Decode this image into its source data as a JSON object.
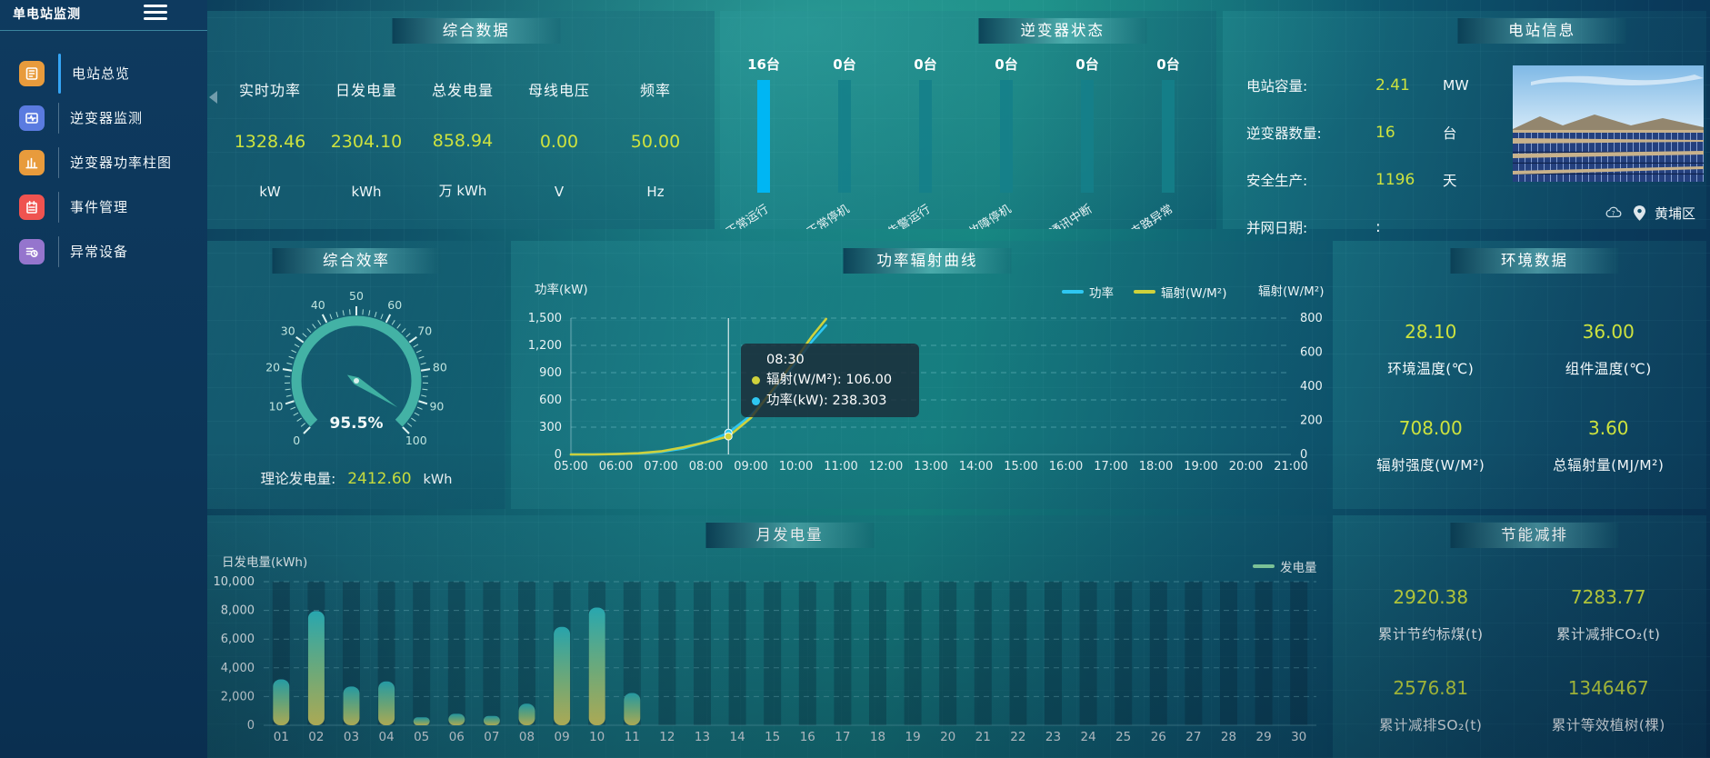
{
  "app": {
    "location_label": "黄埔区"
  },
  "sidebar": {
    "title": "单电站监测",
    "items": [
      {
        "label": "电站总览",
        "icon": "overview-icon",
        "color": "#e89b3c",
        "active": true
      },
      {
        "label": "逆变器监测",
        "icon": "inverter-monitor-icon",
        "color": "#5a7be0",
        "active": false
      },
      {
        "label": "逆变器功率柱图",
        "icon": "power-bars-icon",
        "color": "#e89b3c",
        "active": false
      },
      {
        "label": "事件管理",
        "icon": "event-icon",
        "color": "#ef5350",
        "active": false
      },
      {
        "label": "异常设备",
        "icon": "abnormal-device-icon",
        "color": "#9575cd",
        "active": false
      }
    ]
  },
  "summary": {
    "title": "综合数据",
    "metrics": [
      {
        "label": "实时功率",
        "value": "1328.46",
        "unit": "kW"
      },
      {
        "label": "日发电量",
        "value": "2304.10",
        "unit": "kWh"
      },
      {
        "label": "总发电量",
        "value": "858.94",
        "unit": "万 kWh"
      },
      {
        "label": "母线电压",
        "value": "0.00",
        "unit": "V"
      },
      {
        "label": "频率",
        "value": "50.00",
        "unit": "Hz"
      }
    ]
  },
  "inverter_status": {
    "title": "逆变器状态"
  },
  "station_info": {
    "title": "电站信息",
    "rows": [
      {
        "label": "电站容量:",
        "value": "2.41",
        "unit": "MW"
      },
      {
        "label": "逆变器数量:",
        "value": "16",
        "unit": "台"
      },
      {
        "label": "安全生产:",
        "value": "1196",
        "unit": "天"
      },
      {
        "label": "并网日期:",
        "value": ":",
        "unit": ""
      }
    ],
    "location": "黄埔区"
  },
  "efficiency": {
    "title": "综合效率",
    "footer_label": "理论发电量:",
    "footer_value": "2412.60",
    "footer_unit": "kWh"
  },
  "power_curve": {
    "title": "功率辐射曲线"
  },
  "environment": {
    "title": "环境数据",
    "metrics": [
      {
        "value": "28.10",
        "label": "环境温度(℃)"
      },
      {
        "value": "36.00",
        "label": "组件温度(℃)"
      },
      {
        "value": "708.00",
        "label": "辐射强度(W/M²)"
      },
      {
        "value": "3.60",
        "label": "总辐射量(MJ/M²)"
      }
    ]
  },
  "monthly": {
    "title": "月发电量"
  },
  "saving": {
    "title": "节能减排",
    "metrics": [
      {
        "value": "2920.38",
        "label": "累计节约标煤(t)"
      },
      {
        "value": "7283.77",
        "label": "累计减排CO₂(t)"
      },
      {
        "value": "2576.81",
        "label": "累计减排SO₂(t)"
      },
      {
        "value": "1346467",
        "label": "累计等效植树(棵)"
      }
    ]
  },
  "chart_data": [
    {
      "id": "inverter_status",
      "type": "bar",
      "categories": [
        "正常运行",
        "正常停机",
        "告警运行",
        "故障停机",
        "通讯中断",
        "支路异常"
      ],
      "values": [
        16,
        0,
        0,
        0,
        0,
        0
      ],
      "value_labels": [
        "16台",
        "0台",
        "0台",
        "0台",
        "0台",
        "0台"
      ],
      "active_color": "#00b6f3",
      "idle_color": "#15808a"
    },
    {
      "id": "efficiency_gauge",
      "type": "gauge",
      "min": 0,
      "max": 100,
      "value": 95.5,
      "display": "95.5%",
      "tick_labels": [
        "0",
        "10",
        "20",
        "30",
        "40",
        "50",
        "60",
        "70",
        "80",
        "90",
        "100"
      ],
      "color": "#43b2a5"
    },
    {
      "id": "power_radiation",
      "type": "line",
      "title": "功率辐射曲线",
      "ylabel_left": "功率(kW)",
      "ylabel_right": "辐射(W/M²)",
      "x_range": [
        5,
        21
      ],
      "x_ticks": [
        "05:00",
        "06:00",
        "07:00",
        "08:00",
        "09:00",
        "10:00",
        "11:00",
        "12:00",
        "13:00",
        "14:00",
        "15:00",
        "16:00",
        "17:00",
        "18:00",
        "19:00",
        "20:00",
        "21:00"
      ],
      "left_ticks": [
        "1,500",
        "1,200",
        "900",
        "600",
        "300",
        "0"
      ],
      "left_max": 1500,
      "right_ticks": [
        "800",
        "600",
        "400",
        "200",
        "0"
      ],
      "right_max": 800,
      "grid": true,
      "legend_position": "top-right",
      "series": [
        {
          "name": "功率",
          "color": "#2ec7f2",
          "axis": "left",
          "points": [
            [
              5,
              0
            ],
            [
              5.5,
              0
            ],
            [
              6,
              4
            ],
            [
              6.5,
              10
            ],
            [
              7,
              28
            ],
            [
              7.5,
              65
            ],
            [
              8,
              135
            ],
            [
              8.5,
              238.303
            ],
            [
              9,
              430
            ],
            [
              9.5,
              700
            ],
            [
              10,
              1010
            ],
            [
              10.35,
              1240
            ],
            [
              10.67,
              1420
            ]
          ]
        },
        {
          "name": "辐射(W/M²)",
          "color": "#cfd23c",
          "axis": "right",
          "points": [
            [
              5,
              0
            ],
            [
              5.5,
              0
            ],
            [
              6,
              2
            ],
            [
              6.5,
              7
            ],
            [
              7,
              18
            ],
            [
              7.5,
              42
            ],
            [
              8,
              72
            ],
            [
              8.5,
              106
            ],
            [
              9,
              215
            ],
            [
              9.5,
              385
            ],
            [
              10,
              560
            ],
            [
              10.35,
              690
            ],
            [
              10.67,
              795
            ]
          ]
        }
      ],
      "hover": {
        "x": 8.5,
        "time": "08:30",
        "rows": [
          {
            "color": "#cfd23c",
            "label": "辐射(W/M²)",
            "value": "106.00"
          },
          {
            "color": "#2ec7f2",
            "label": "功率(kW)",
            "value": "238.303"
          }
        ]
      }
    },
    {
      "id": "monthly_generation",
      "type": "bar",
      "title": "月发电量",
      "ylabel": "日发电量(kWh)",
      "legend": "发电量",
      "legend_color": "#8bd9a6",
      "categories": [
        "01",
        "02",
        "03",
        "04",
        "05",
        "06",
        "07",
        "08",
        "09",
        "10",
        "11",
        "12",
        "13",
        "14",
        "15",
        "16",
        "17",
        "18",
        "19",
        "20",
        "21",
        "22",
        "23",
        "24",
        "25",
        "26",
        "27",
        "28",
        "29",
        "30"
      ],
      "values": [
        3200,
        7950,
        2700,
        3050,
        550,
        800,
        650,
        1500,
        6850,
        8200,
        2250,
        0,
        0,
        0,
        0,
        0,
        0,
        0,
        0,
        0,
        0,
        0,
        0,
        0,
        0,
        0,
        0,
        0,
        0,
        0
      ],
      "y_ticks": [
        "10,000",
        "8,000",
        "6,000",
        "4,000",
        "2,000",
        "0"
      ],
      "ymax": 10000,
      "bar_gradient": [
        "#2fc3c9",
        "#8fd48e",
        "#e9e166"
      ]
    }
  ]
}
